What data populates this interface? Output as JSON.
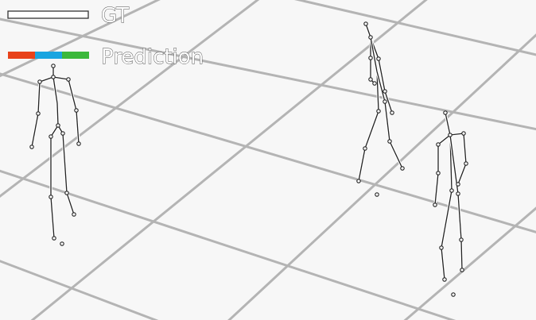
{
  "legend": {
    "gt_label": "GT",
    "prediction_label": "Prediction",
    "gt_color": "#ffffff",
    "prediction_colors": [
      "#e8431a",
      "#1aa5e0",
      "#3cb83c"
    ]
  },
  "colors": {
    "background": "#f7f7f7",
    "grid": "#b4b4b4",
    "skeleton_outline": "#222222",
    "skeleton_fill": "#ffffff"
  }
}
